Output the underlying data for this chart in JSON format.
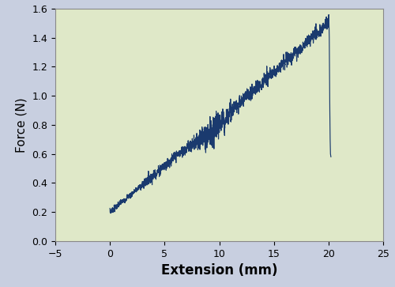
{
  "xlabel": "Extension (mm)",
  "ylabel": "Force (N)",
  "xlim": [
    -5,
    25
  ],
  "ylim": [
    0,
    1.6
  ],
  "xticks": [
    -5,
    0,
    5,
    10,
    15,
    20,
    25
  ],
  "yticks": [
    0,
    0.2,
    0.4,
    0.6,
    0.8,
    1.0,
    1.2,
    1.4,
    1.6
  ],
  "line_color": "#1a3a6e",
  "bg_color": "#dfe8c8",
  "outer_bg": "#c8cfe0",
  "line_width": 0.85,
  "xlabel_fontsize": 12,
  "ylabel_fontsize": 11,
  "tick_fontsize": 9
}
